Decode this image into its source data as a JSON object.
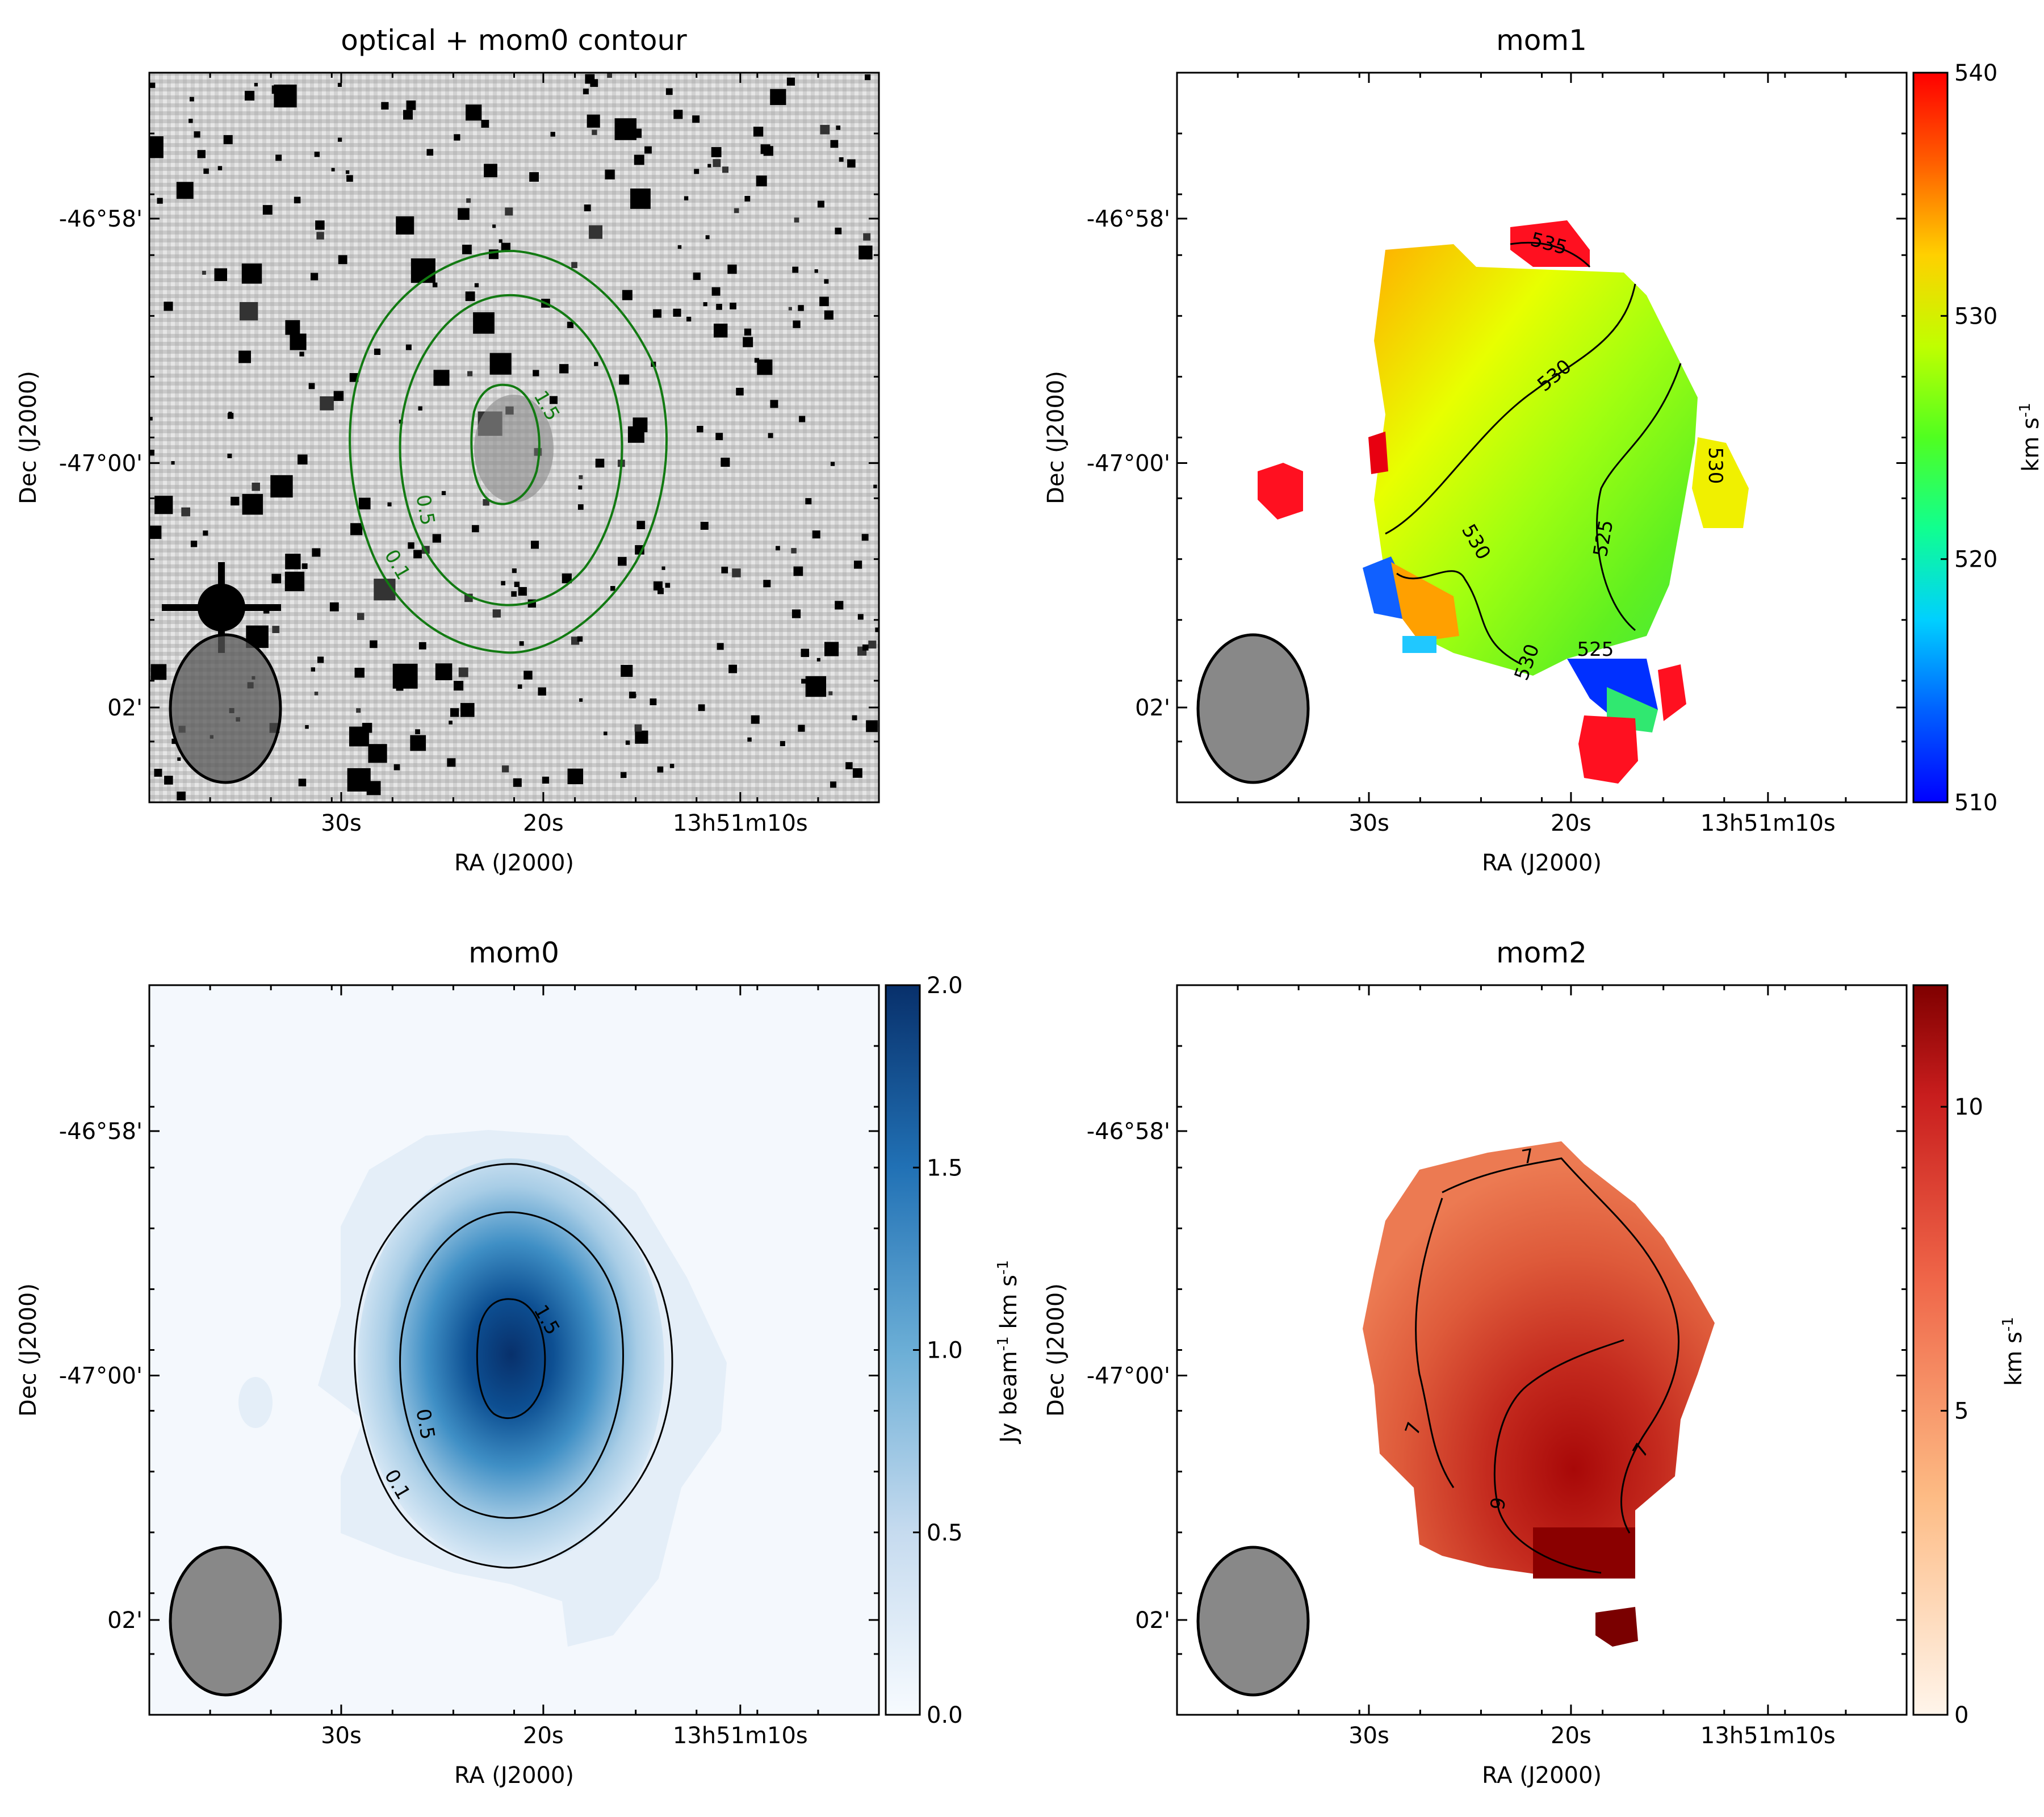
{
  "figure_type": "2x2 image panels with contours (HI moment maps)",
  "chart_data": [
    {
      "id": "optical",
      "type": "heatmap",
      "title": "optical + mom0 contour",
      "xlabel": "RA (J2000)",
      "ylabel": "Dec (J2000)",
      "xticks": [
        "30s",
        "20s",
        "13h51m10s"
      ],
      "yticks": [
        "-46°58'",
        "-47°00'",
        "02'"
      ],
      "colormap": "gray (optical)",
      "contours": {
        "color": "#127a12",
        "levels": [
          "0.1",
          "0.5",
          "1.5"
        ]
      },
      "beam": true
    },
    {
      "id": "mom1",
      "type": "heatmap",
      "title": "mom1",
      "xlabel": "RA (J2000)",
      "ylabel": "Dec (J2000)",
      "xticks": [
        "30s",
        "20s",
        "13h51m10s"
      ],
      "yticks": [
        "-46°58'",
        "-47°00'",
        "02'"
      ],
      "colormap": "jet",
      "colorbar": {
        "label": "km s",
        "label_sup": "-1",
        "range": [
          510,
          540
        ],
        "ticks": [
          "510",
          "520",
          "530",
          "540"
        ]
      },
      "contours": {
        "color": "#000000",
        "levels": [
          "525",
          "530",
          "535"
        ]
      },
      "beam": true
    },
    {
      "id": "mom0",
      "type": "heatmap",
      "title": "mom0",
      "xlabel": "RA (J2000)",
      "ylabel": "Dec (J2000)",
      "xticks": [
        "30s",
        "20s",
        "13h51m10s"
      ],
      "yticks": [
        "-46°58'",
        "-47°00'",
        "02'"
      ],
      "colormap": "Blues",
      "colorbar": {
        "label_pre": "Jy beam",
        "label_pre_sup": "-1",
        "label": " km s",
        "label_sup": "-1",
        "range": [
          0.0,
          2.0
        ],
        "ticks": [
          "0.0",
          "0.5",
          "1.0",
          "1.5",
          "2.0"
        ]
      },
      "contours": {
        "color": "#000000",
        "levels": [
          "0.1",
          "0.5",
          "1.5"
        ]
      },
      "beam": true
    },
    {
      "id": "mom2",
      "type": "heatmap",
      "title": "mom2",
      "xlabel": "RA (J2000)",
      "ylabel": "Dec (J2000)",
      "xticks": [
        "30s",
        "20s",
        "13h51m10s"
      ],
      "yticks": [
        "-46°58'",
        "-47°00'",
        "02'"
      ],
      "colormap": "OrRd / Reds",
      "colorbar": {
        "label": "km s",
        "label_sup": "-1",
        "range": [
          0,
          12
        ],
        "ticks": [
          "0",
          "5",
          "10"
        ]
      },
      "contours": {
        "color": "#000000",
        "levels": [
          "7",
          "9"
        ]
      },
      "beam": true
    }
  ]
}
